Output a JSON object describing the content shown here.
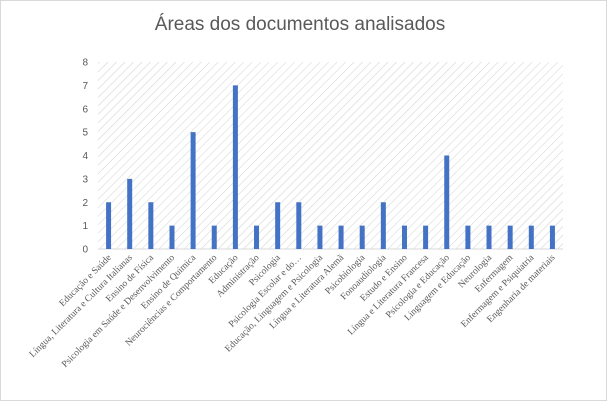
{
  "chart_data": {
    "type": "bar",
    "title": "Áreas dos documentos analisados",
    "xlabel": "",
    "ylabel": "",
    "ylim": [
      0,
      8
    ],
    "yticks": [
      0,
      1,
      2,
      3,
      4,
      5,
      6,
      7,
      8
    ],
    "grid": "hatched-background",
    "bar_color": "#4472c4",
    "categories": [
      "Educação e Saúde",
      "Língua, Literatura e Cultura Italianas",
      "Ensino de Física",
      "Psicologia em Saúde e Desenvolvimento",
      "Ensino de Química",
      "Neurociências e Comportamento",
      "Educação",
      "Administração",
      "Psicologia",
      "Psicologia Escolar e do…",
      "Educação, Linguagem e Psicologia",
      "Língua e Literatura Alemã",
      "Psicobiologia",
      "Fonoaudiologia",
      "Estudo e Ensino",
      "Língua e Literatura Francesa",
      "Psicologia e Educação",
      "Linguagem e Educação",
      "Neurologia",
      "Enfermagem",
      "Enfermagem e Psiquiatria",
      "Engenharia de materiais"
    ],
    "values": [
      2,
      3,
      2,
      1,
      5,
      1,
      7,
      1,
      2,
      2,
      1,
      1,
      1,
      2,
      1,
      1,
      4,
      1,
      1,
      1,
      1,
      1
    ]
  }
}
